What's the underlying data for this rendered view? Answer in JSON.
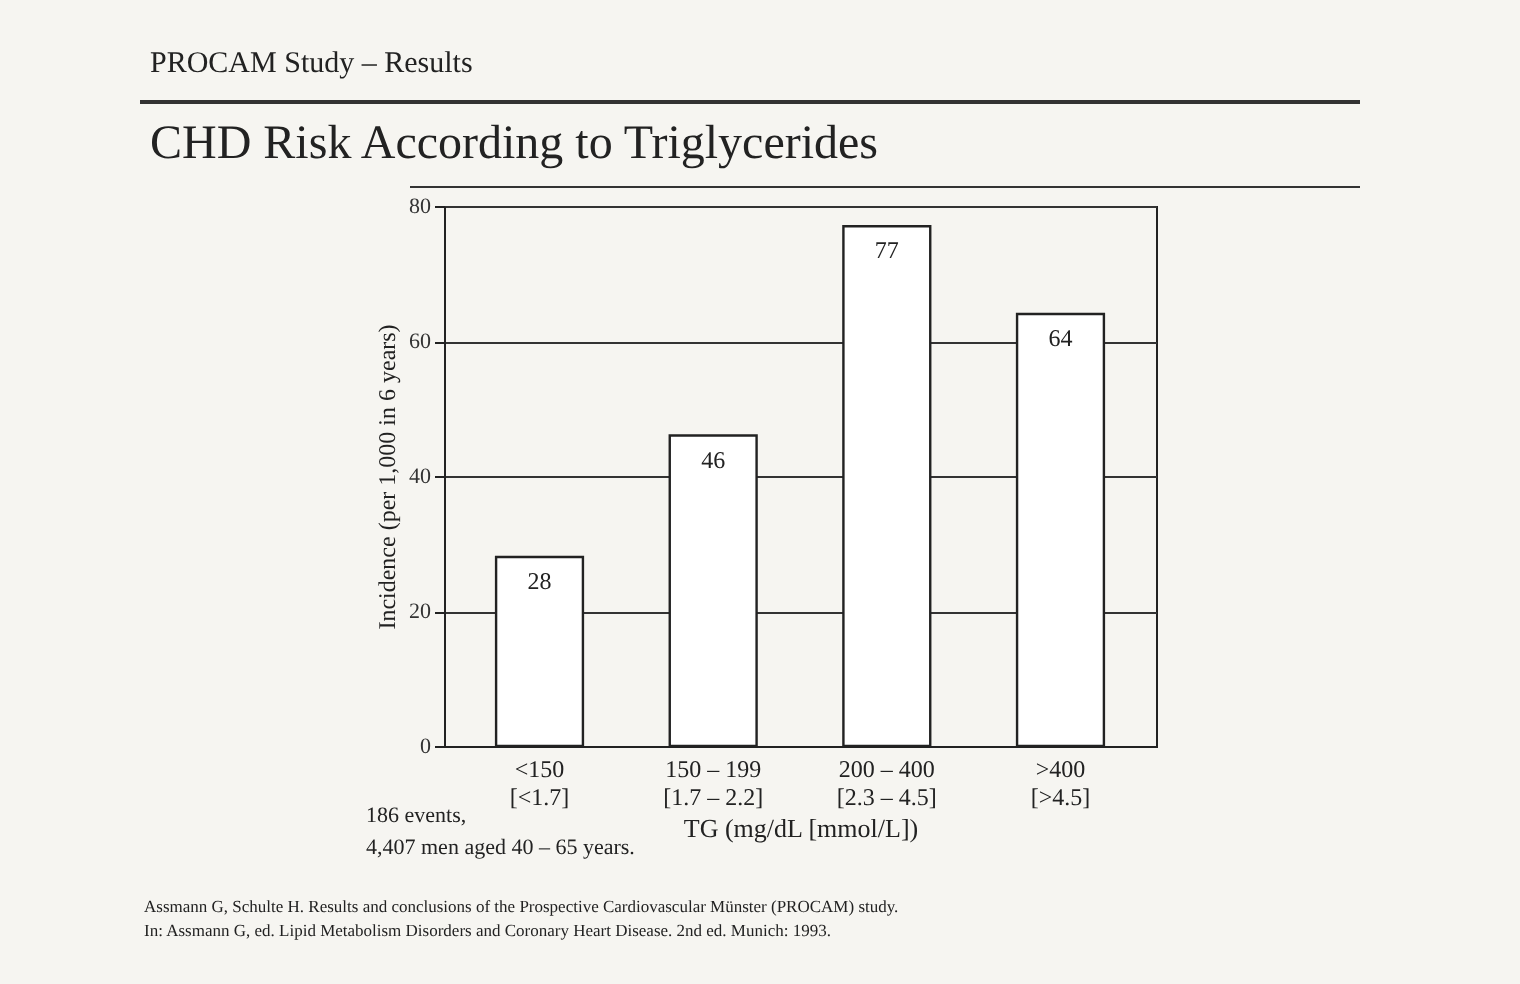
{
  "chart_data": {
    "type": "bar",
    "subtitle": "PROCAM Study – Results",
    "title": "CHD Risk According to Triglycerides",
    "categories": [
      "<150\n[<1.7]",
      "150 – 199\n[1.7 – 2.2]",
      "200 – 400\n[2.3 – 4.5]",
      ">400\n[>4.5]"
    ],
    "values": [
      28,
      46,
      77,
      64
    ],
    "color": "#ffffff",
    "data_labels": true,
    "xlabel": "TG (mg/dL [mmol/L])",
    "ylabel": "Incidence (per 1,000 in 6 years)",
    "ylim": [
      0,
      80
    ],
    "yticks": [
      0,
      20,
      40,
      60,
      80
    ],
    "grid": "y",
    "annotations": [
      "186 events,",
      "4,407 men aged 40 – 65 years.",
      "Assmann G, Schulte H. Results and conclusions of the Prospective Cardiovascular Münster (PROCAM) study.",
      "In: Assmann G, ed. Lipid Metabolism Disorders and Coronary Heart Disease. 2nd ed. Munich: 1993."
    ]
  }
}
